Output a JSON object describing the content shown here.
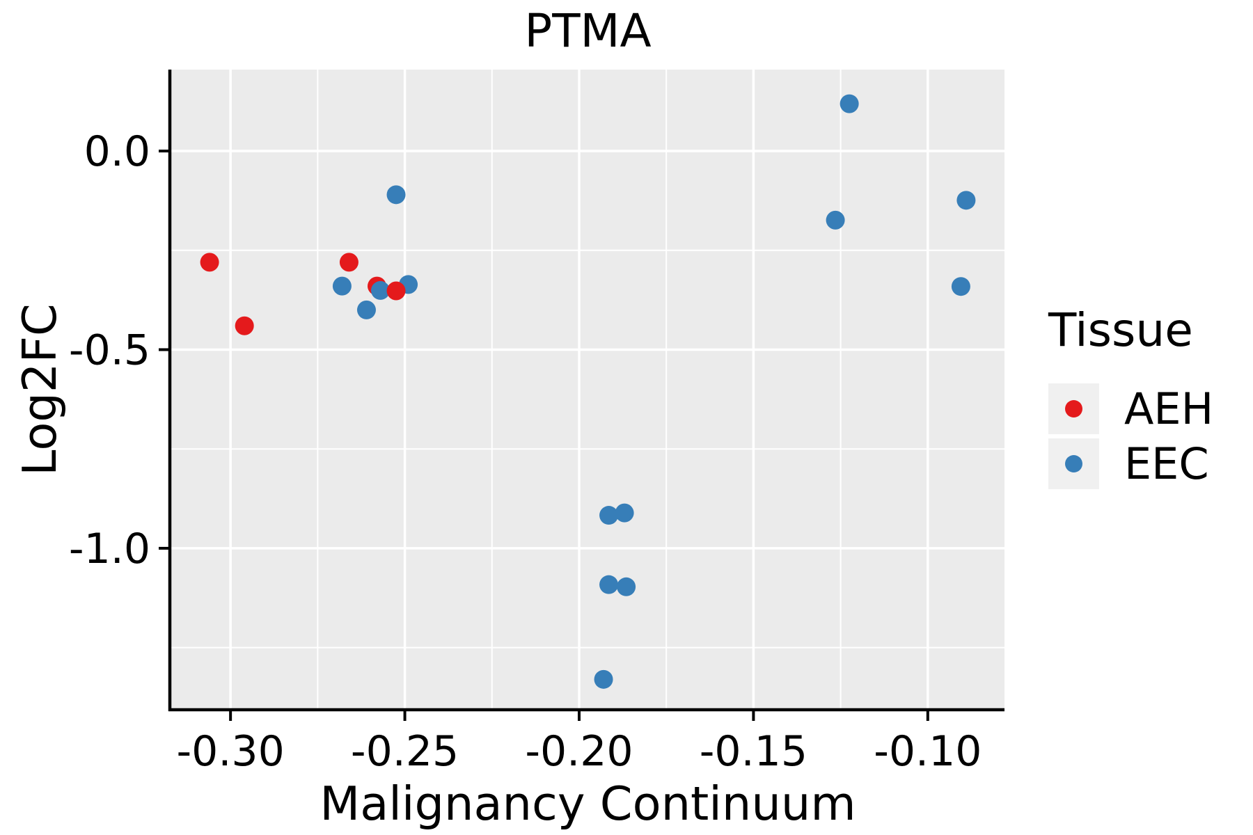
{
  "chart_data": {
    "type": "scatter",
    "title": "PTMA",
    "xlabel": "Malignancy Continuum",
    "ylabel": "Log2FC",
    "xlim": [
      -0.317,
      -0.078
    ],
    "ylim": [
      -1.403,
      0.205
    ],
    "x_ticks": [
      {
        "v": -0.3,
        "label": "-0.30"
      },
      {
        "v": -0.25,
        "label": "-0.25"
      },
      {
        "v": -0.2,
        "label": "-0.20"
      },
      {
        "v": -0.15,
        "label": "-0.15"
      },
      {
        "v": -0.1,
        "label": "-0.10"
      }
    ],
    "y_ticks": [
      {
        "v": 0.0,
        "label": "0.0"
      },
      {
        "v": -0.5,
        "label": "-0.5"
      },
      {
        "v": -1.0,
        "label": "-1.0"
      }
    ],
    "x_minor_gridlines": [
      -0.275,
      -0.225,
      -0.175,
      -0.125
    ],
    "y_minor_gridlines": [
      -0.25,
      -0.75,
      -1.25
    ],
    "grid": "white major and minor gridlines on gray panel",
    "panel_bg": "#EBEBEB",
    "point_radius_px": 13.5,
    "legend": {
      "title": "Tissue",
      "position": "right",
      "entries": [
        {
          "label": "AEH",
          "color": "#E41A1C"
        },
        {
          "label": "EEC",
          "color": "#377EB8"
        }
      ]
    },
    "series": [
      {
        "name": "AEH",
        "color": "#E41A1C",
        "points": [
          {
            "x": -0.306,
            "y": -0.28,
            "z": 1
          },
          {
            "x": -0.296,
            "y": -0.44,
            "z": 2
          },
          {
            "x": -0.266,
            "y": -0.28,
            "z": 3
          },
          {
            "x": -0.258,
            "y": -0.34,
            "z": 4
          },
          {
            "x": -0.2525,
            "y": -0.352,
            "z": 10
          }
        ]
      },
      {
        "name": "EEC",
        "color": "#377EB8",
        "points": [
          {
            "x": -0.2525,
            "y": -0.11,
            "z": 8
          },
          {
            "x": -0.268,
            "y": -0.34,
            "z": 6
          },
          {
            "x": -0.257,
            "y": -0.351,
            "z": 5
          },
          {
            "x": -0.249,
            "y": -0.336,
            "z": 9
          },
          {
            "x": -0.261,
            "y": -0.4,
            "z": 7
          },
          {
            "x": -0.1915,
            "y": -0.917,
            "z": 11
          },
          {
            "x": -0.187,
            "y": -0.911,
            "z": 12
          },
          {
            "x": -0.1915,
            "y": -1.0915,
            "z": 13
          },
          {
            "x": -0.1865,
            "y": -1.097,
            "z": 14
          },
          {
            "x": -0.193,
            "y": -1.33,
            "z": 15
          },
          {
            "x": -0.1225,
            "y": 0.119,
            "z": 16
          },
          {
            "x": -0.1265,
            "y": -0.174,
            "z": 17
          },
          {
            "x": -0.089,
            "y": -0.124,
            "z": 18
          },
          {
            "x": -0.0905,
            "y": -0.341,
            "z": 19
          }
        ]
      }
    ]
  }
}
